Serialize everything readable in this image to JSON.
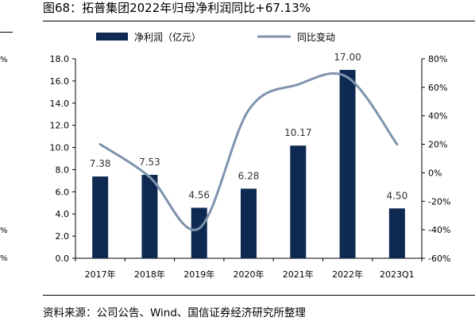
{
  "figure": {
    "title": "图68：拓普集团2022年归母净利润同比+67.13%",
    "source": "资料来源：公司公告、Wind、国信证券经济研究所整理"
  },
  "colors": {
    "bar": "#0f2a52",
    "line": "#7f93ad",
    "axis": "#000000"
  },
  "chart_data": {
    "type": "bar",
    "categories": [
      "2017年",
      "2018年",
      "2019年",
      "2020年",
      "2021年",
      "2022年",
      "2023Q1"
    ],
    "series": [
      {
        "name": "净利润（亿元）",
        "type": "bar",
        "axis": "left",
        "values": [
          7.38,
          7.53,
          4.56,
          6.28,
          10.17,
          17.0,
          4.5
        ],
        "labels": [
          "7.38",
          "7.53",
          "4.56",
          "6.28",
          "10.17",
          "17.00",
          "4.50"
        ]
      },
      {
        "name": "同比变动",
        "type": "line",
        "axis": "right",
        "smooth": true,
        "values": [
          20,
          -3,
          -39,
          44,
          62,
          67,
          20
        ]
      }
    ],
    "y_left": {
      "ylim": [
        0,
        18
      ],
      "ticks": [
        "0.0",
        "2.0",
        "4.0",
        "6.0",
        "8.0",
        "10.0",
        "12.0",
        "14.0",
        "16.0",
        "18.0"
      ]
    },
    "y_right": {
      "ylim": [
        -60,
        80
      ],
      "ticks": [
        "-60%",
        "-40%",
        "-20%",
        "0%",
        "20%",
        "40%",
        "60%",
        "80%"
      ]
    },
    "legend": "top",
    "grid": false
  }
}
